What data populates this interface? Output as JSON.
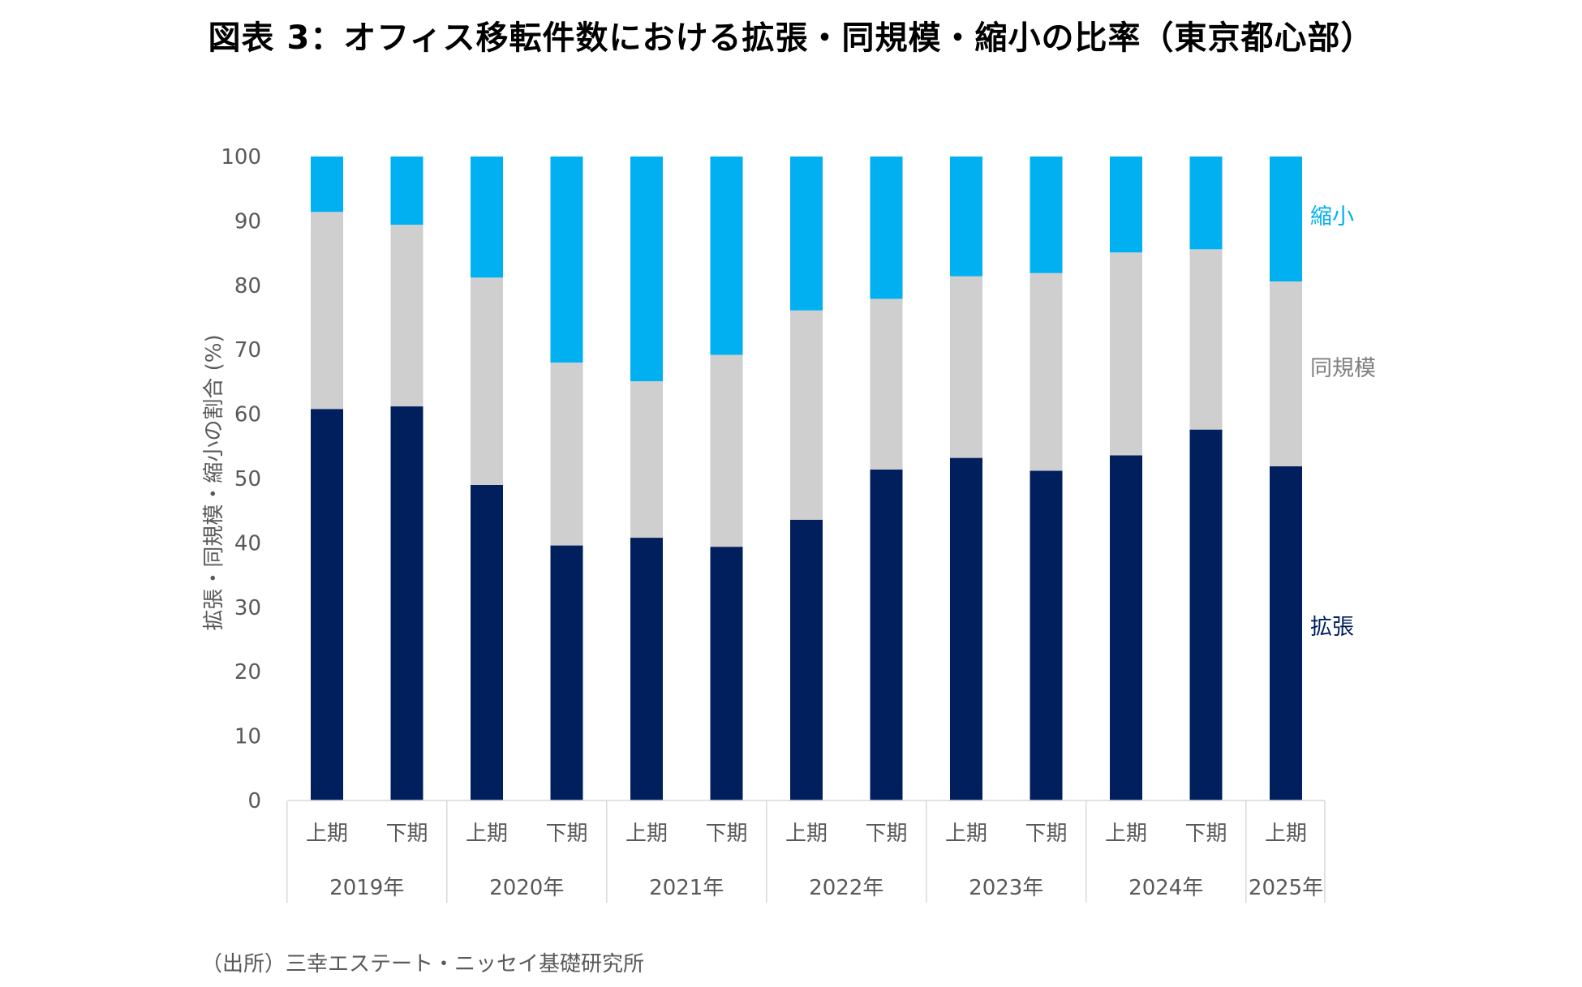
{
  "title": "図表 3：オフィス移転件数における拡張・同規模・縮小の比率（東京都心部）",
  "source": "（出所）三幸エステート・ニッセイ基礎研究所",
  "colors": {
    "expand": "#001F5C",
    "same": "#D0CFCF",
    "shrink": "#00B0F0"
  },
  "chart_data": {
    "type": "bar",
    "stacked": true,
    "ylabel": "拡張・同規模・縮小の割合 (%)",
    "ylim": [
      0,
      100
    ],
    "yticks": [
      "0",
      "10",
      "20",
      "30",
      "40",
      "50",
      "60",
      "70",
      "80",
      "90",
      "100"
    ],
    "categories": [
      "上期",
      "下期",
      "上期",
      "下期",
      "上期",
      "下期",
      "上期",
      "下期",
      "上期",
      "下期",
      "上期",
      "下期",
      "上期"
    ],
    "groups": [
      {
        "label": "2019年",
        "count": 2
      },
      {
        "label": "2020年",
        "count": 2
      },
      {
        "label": "2021年",
        "count": 2
      },
      {
        "label": "2022年",
        "count": 2
      },
      {
        "label": "2023年",
        "count": 2
      },
      {
        "label": "2024年",
        "count": 2
      },
      {
        "label": "2025年",
        "count": 1
      }
    ],
    "series": [
      {
        "name": "拡張",
        "values": [
          60.8,
          61.2,
          49.0,
          39.6,
          40.8,
          39.4,
          43.6,
          51.4,
          53.2,
          51.2,
          53.6,
          57.6,
          51.9
        ]
      },
      {
        "name": "同規模",
        "values": [
          30.6,
          28.2,
          32.2,
          28.4,
          24.3,
          29.8,
          32.5,
          26.5,
          28.2,
          30.7,
          31.5,
          28.0,
          28.7
        ]
      },
      {
        "name": "縮小",
        "values": [
          8.6,
          10.6,
          18.8,
          32.0,
          34.9,
          30.8,
          23.9,
          22.1,
          18.6,
          18.1,
          14.9,
          14.4,
          19.4
        ]
      }
    ],
    "legend_placement": "right"
  }
}
